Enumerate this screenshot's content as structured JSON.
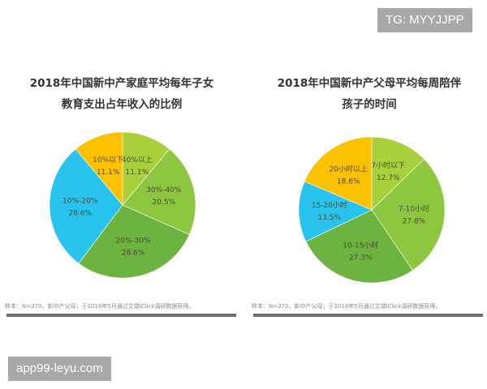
{
  "watermark_top": "TG: MYYJJPP",
  "watermark_bottom": "app99-leyu.com",
  "charts": {
    "left": {
      "title_line1": "2018年中国新中产家庭平均每年子女",
      "title_line2": "教育支出占年收入的比例",
      "source": "样本：N=370，新中产父母；于2018年5月通过艾瑞iClick调研数据获得。"
    },
    "right": {
      "title_line1": "2018年中国新中产父母平均每周陪伴",
      "title_line2": "孩子的时间",
      "source": "样本：N=370，新中产父母；于2018年5月通过艾瑞iClick调研数据获得。"
    }
  },
  "chart_data": [
    {
      "type": "pie",
      "title": "2018年中国新中产家庭平均每年子女教育支出占年收入的比例",
      "categories": [
        "40%以上",
        "30%-40%",
        "20%-30%",
        "10%-20%",
        "10%以下"
      ],
      "values": [
        11.1,
        20.5,
        28.6,
        28.6,
        11.1
      ],
      "labels": [
        "11.1%",
        "20.5%",
        "28.6%",
        "28.6%",
        "11.1%"
      ],
      "colors": [
        "#a9cf3a",
        "#8dc63f",
        "#6db33f",
        "#29c4ee",
        "#fcc200"
      ],
      "start_angle": "12 o'clock, clockwise"
    },
    {
      "type": "pie",
      "title": "2018年中国新中产父母平均每周陪伴孩子的时间",
      "categories": [
        "7小时以下",
        "7-10小时",
        "10-15小时",
        "15-20小时",
        "20小时以上"
      ],
      "values": [
        12.7,
        27.8,
        27.3,
        13.5,
        18.6
      ],
      "labels": [
        "12.7%",
        "27.8%",
        "27.3%",
        "13.5%",
        "18.6%"
      ],
      "colors": [
        "#a9cf3a",
        "#8dc63f",
        "#6db33f",
        "#29c4ee",
        "#fcc200"
      ],
      "start_angle": "12 o'clock, clockwise"
    }
  ]
}
